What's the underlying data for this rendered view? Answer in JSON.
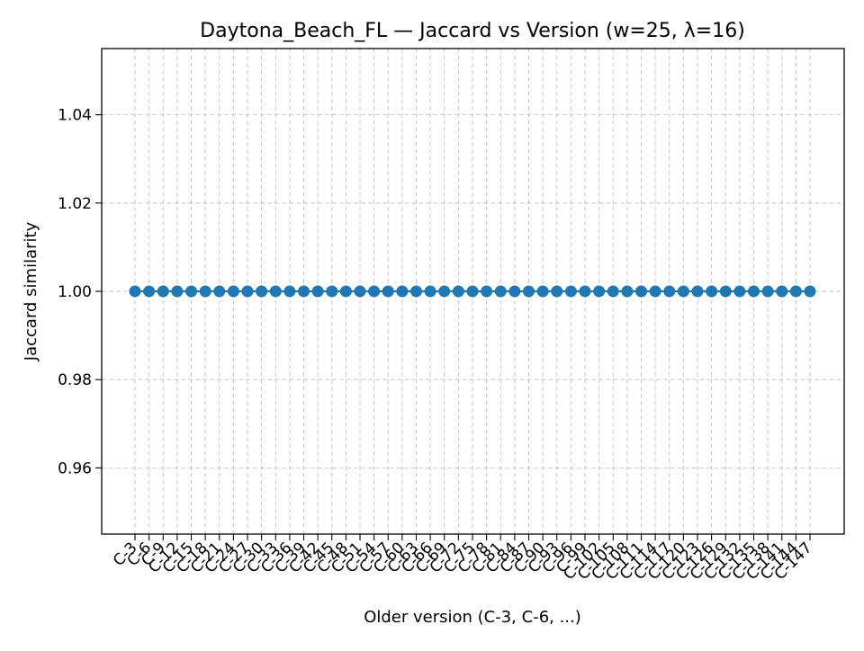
{
  "chart_data": {
    "type": "line",
    "title": "Daytona_Beach_FL — Jaccard vs Version (w=25, λ=16)",
    "xlabel": "Older version (C-3, C-6, ...)",
    "ylabel": "Jaccard similarity",
    "ylim": [
      0.945,
      1.055
    ],
    "yticks": [
      0.96,
      0.98,
      1.0,
      1.02,
      1.04
    ],
    "ytick_labels": [
      "0.96",
      "0.98",
      "1.00",
      "1.02",
      "1.04"
    ],
    "grid": true,
    "marker": "circle",
    "series_color": "#1f77b4",
    "categories": [
      "C-3",
      "C-6",
      "C-9",
      "C-12",
      "C-15",
      "C-18",
      "C-21",
      "C-24",
      "C-27",
      "C-30",
      "C-33",
      "C-36",
      "C-39",
      "C-42",
      "C-45",
      "C-48",
      "C-51",
      "C-54",
      "C-57",
      "C-60",
      "C-63",
      "C-66",
      "C-69",
      "C-72",
      "C-75",
      "C-78",
      "C-81",
      "C-84",
      "C-87",
      "C-90",
      "C-93",
      "C-96",
      "C-99",
      "C-102",
      "C-105",
      "C-108",
      "C-111",
      "C-114",
      "C-117",
      "C-120",
      "C-123",
      "C-126",
      "C-129",
      "C-132",
      "C-135",
      "C-138",
      "C-141",
      "C-144",
      "C-147"
    ],
    "series": [
      {
        "name": "Jaccard similarity",
        "values": [
          1,
          1,
          1,
          1,
          1,
          1,
          1,
          1,
          1,
          1,
          1,
          1,
          1,
          1,
          1,
          1,
          1,
          1,
          1,
          1,
          1,
          1,
          1,
          1,
          1,
          1,
          1,
          1,
          1,
          1,
          1,
          1,
          1,
          1,
          1,
          1,
          1,
          1,
          1,
          1,
          1,
          1,
          1,
          1,
          1,
          1,
          1,
          1,
          1
        ]
      }
    ]
  }
}
